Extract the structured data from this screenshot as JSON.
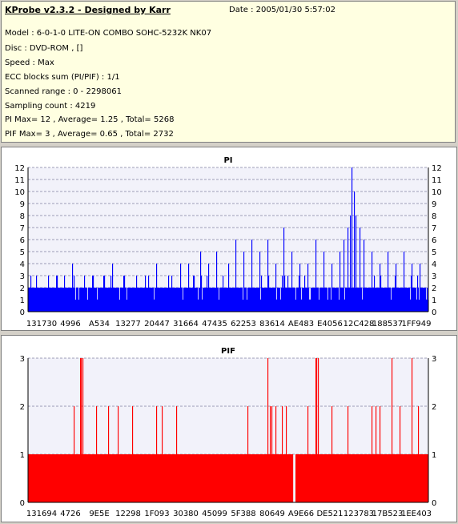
{
  "header": {
    "app_title": "KProbe v2.3.2 - Designed by Karr",
    "date": "Date : 2005/01/30 5:57:02"
  },
  "info_lines": [
    "Model : 6-0-1-0 LITE-ON COMBO SOHC-5232K NK07",
    "Disc : DVD-ROM ,  []",
    "Speed : Max",
    "ECC blocks sum (PI/PIF) : 1/1",
    "Scanned range : 0 - 2298061",
    "Sampling count : 4219",
    "PI Max= 12 , Average= 1.25 , Total= 5268",
    "PIF Max= 3 , Average= 0.65 , Total= 2732"
  ],
  "colors": {
    "pi": "#0000ff",
    "pif": "#ff0000",
    "plot_bg": "#f2f2fa",
    "grid": "#8080a0"
  },
  "chart_data": [
    {
      "type": "bar",
      "title": "PI",
      "ylim": [
        0,
        12
      ],
      "yticks": [
        0,
        1,
        2,
        3,
        4,
        5,
        6,
        7,
        8,
        9,
        10,
        11,
        12
      ],
      "xtick_labels": [
        "131730",
        "4996",
        "A534",
        "13277",
        "20447",
        "31664",
        "47435",
        "62253",
        "83614",
        "AE483",
        "E4056",
        "12C428",
        "188537",
        "1FF949"
      ],
      "grid": "dashed horizontal",
      "series": [
        {
          "color": "#0000ff",
          "base_level": 2,
          "peaks": [
            {
              "pos": 0.02,
              "value": 3
            },
            {
              "pos": 0.05,
              "value": 3
            },
            {
              "pos": 0.07,
              "value": 3
            },
            {
              "pos": 0.09,
              "value": 3
            },
            {
              "pos": 0.11,
              "value": 4
            },
            {
              "pos": 0.14,
              "value": 3
            },
            {
              "pos": 0.16,
              "value": 3
            },
            {
              "pos": 0.19,
              "value": 3
            },
            {
              "pos": 0.21,
              "value": 4
            },
            {
              "pos": 0.24,
              "value": 3
            },
            {
              "pos": 0.27,
              "value": 3
            },
            {
              "pos": 0.3,
              "value": 3
            },
            {
              "pos": 0.32,
              "value": 4
            },
            {
              "pos": 0.35,
              "value": 3
            },
            {
              "pos": 0.38,
              "value": 4
            },
            {
              "pos": 0.4,
              "value": 4
            },
            {
              "pos": 0.43,
              "value": 5
            },
            {
              "pos": 0.45,
              "value": 4
            },
            {
              "pos": 0.47,
              "value": 5
            },
            {
              "pos": 0.5,
              "value": 4
            },
            {
              "pos": 0.52,
              "value": 6
            },
            {
              "pos": 0.54,
              "value": 5
            },
            {
              "pos": 0.56,
              "value": 6
            },
            {
              "pos": 0.58,
              "value": 5
            },
            {
              "pos": 0.6,
              "value": 6
            },
            {
              "pos": 0.62,
              "value": 4
            },
            {
              "pos": 0.64,
              "value": 7
            },
            {
              "pos": 0.66,
              "value": 5
            },
            {
              "pos": 0.68,
              "value": 4
            },
            {
              "pos": 0.7,
              "value": 4
            },
            {
              "pos": 0.72,
              "value": 6
            },
            {
              "pos": 0.74,
              "value": 5
            },
            {
              "pos": 0.76,
              "value": 4
            },
            {
              "pos": 0.78,
              "value": 5
            },
            {
              "pos": 0.79,
              "value": 6
            },
            {
              "pos": 0.8,
              "value": 7
            },
            {
              "pos": 0.805,
              "value": 8
            },
            {
              "pos": 0.81,
              "value": 12
            },
            {
              "pos": 0.815,
              "value": 10
            },
            {
              "pos": 0.82,
              "value": 8
            },
            {
              "pos": 0.83,
              "value": 7
            },
            {
              "pos": 0.84,
              "value": 6
            },
            {
              "pos": 0.86,
              "value": 5
            },
            {
              "pos": 0.88,
              "value": 4
            },
            {
              "pos": 0.9,
              "value": 5
            },
            {
              "pos": 0.92,
              "value": 4
            },
            {
              "pos": 0.94,
              "value": 5
            },
            {
              "pos": 0.96,
              "value": 4
            },
            {
              "pos": 0.98,
              "value": 4
            }
          ]
        }
      ]
    },
    {
      "type": "bar",
      "title": "PIF",
      "ylim": [
        0,
        3
      ],
      "yticks": [
        0,
        1,
        2,
        3
      ],
      "xtick_labels": [
        "131694",
        "4726",
        "9E5E",
        "12298",
        "1F093",
        "30380",
        "45099",
        "5F388",
        "80649",
        "A9E66",
        "DE521",
        "123783",
        "17B523",
        "1EE403"
      ],
      "grid": "dashed horizontal",
      "series": [
        {
          "color": "#ff0000",
          "base_level": 1,
          "gaps": [
            0.662,
            0.668
          ],
          "peaks": [
            {
              "pos": 0.115,
              "value": 2
            },
            {
              "pos": 0.13,
              "value": 3
            },
            {
              "pos": 0.132,
              "value": 3
            },
            {
              "pos": 0.136,
              "value": 3
            },
            {
              "pos": 0.17,
              "value": 2
            },
            {
              "pos": 0.2,
              "value": 2
            },
            {
              "pos": 0.225,
              "value": 2
            },
            {
              "pos": 0.26,
              "value": 2
            },
            {
              "pos": 0.32,
              "value": 2
            },
            {
              "pos": 0.335,
              "value": 2
            },
            {
              "pos": 0.37,
              "value": 2
            },
            {
              "pos": 0.55,
              "value": 2
            },
            {
              "pos": 0.6,
              "value": 3
            },
            {
              "pos": 0.605,
              "value": 2
            },
            {
              "pos": 0.61,
              "value": 2
            },
            {
              "pos": 0.62,
              "value": 2
            },
            {
              "pos": 0.635,
              "value": 2
            },
            {
              "pos": 0.645,
              "value": 2
            },
            {
              "pos": 0.7,
              "value": 2
            },
            {
              "pos": 0.72,
              "value": 3
            },
            {
              "pos": 0.722,
              "value": 3
            },
            {
              "pos": 0.726,
              "value": 3
            },
            {
              "pos": 0.76,
              "value": 2
            },
            {
              "pos": 0.8,
              "value": 2
            },
            {
              "pos": 0.86,
              "value": 2
            },
            {
              "pos": 0.87,
              "value": 2
            },
            {
              "pos": 0.88,
              "value": 2
            },
            {
              "pos": 0.91,
              "value": 3
            },
            {
              "pos": 0.93,
              "value": 2
            },
            {
              "pos": 0.96,
              "value": 3
            },
            {
              "pos": 0.975,
              "value": 2
            }
          ]
        }
      ]
    }
  ]
}
